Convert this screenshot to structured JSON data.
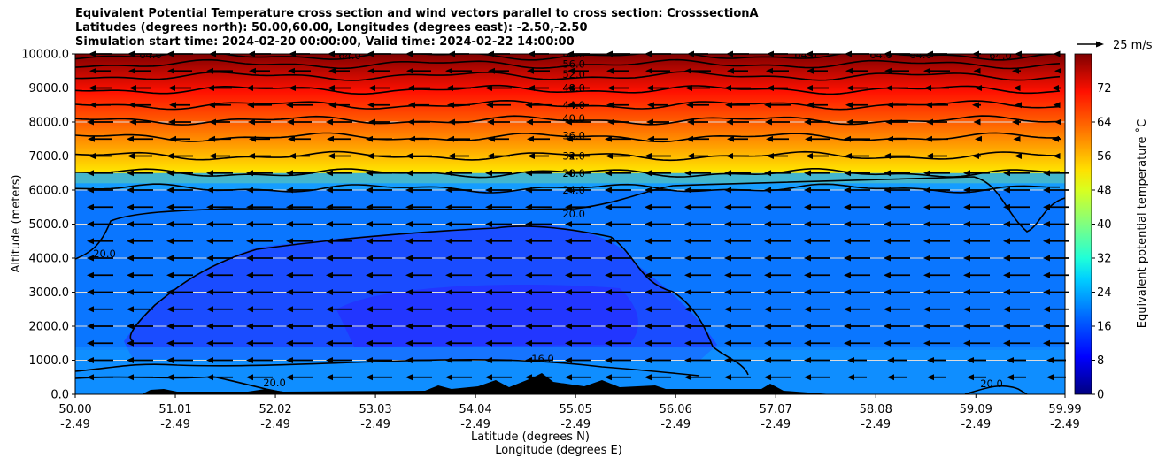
{
  "chart_data": {
    "type": "contourf",
    "title_lines": [
      "Equivalent Potential Temperature cross section and wind vectors parallel to cross section: CrosssectionA",
      "Latitudes (degrees north): 50.00,60.00, Longitudes (degrees east): -2.50,-2.50",
      "Simulation start time: 2024-02-20 00:00:00, Valid time: 2024-02-22 14:00:00"
    ],
    "ylabel": "Altitude (meters)",
    "xlabel_lines": [
      "Latitude (degrees N)",
      "Longitude (degrees E)"
    ],
    "ylim": [
      0,
      10000
    ],
    "yticks": [
      "0.0",
      "1000.0",
      "2000.0",
      "3000.0",
      "4000.0",
      "5000.0",
      "6000.0",
      "7000.0",
      "8000.0",
      "9000.0",
      "10000.0"
    ],
    "xlim": [
      50.0,
      59.99
    ],
    "xticks": [
      {
        "lat": "50.00",
        "lon": "-2.49"
      },
      {
        "lat": "51.01",
        "lon": "-2.49"
      },
      {
        "lat": "52.02",
        "lon": "-2.49"
      },
      {
        "lat": "53.03",
        "lon": "-2.49"
      },
      {
        "lat": "54.04",
        "lon": "-2.49"
      },
      {
        "lat": "55.05",
        "lon": "-2.49"
      },
      {
        "lat": "56.06",
        "lon": "-2.49"
      },
      {
        "lat": "57.07",
        "lon": "-2.49"
      },
      {
        "lat": "58.08",
        "lon": "-2.49"
      },
      {
        "lat": "59.09",
        "lon": "-2.49"
      },
      {
        "lat": "59.99",
        "lon": "-2.49"
      }
    ],
    "colorbar": {
      "label": "Equivalent potential temperature ˚C",
      "range": [
        0,
        80
      ],
      "ticks": [
        "0",
        "8",
        "16",
        "24",
        "32",
        "40",
        "48",
        "56",
        "64",
        "72"
      ],
      "colormap": "jet"
    },
    "quiver_key": {
      "label": "25 m/s",
      "value": 25
    },
    "wind": {
      "direction": "southward (toward lower latitude)",
      "typical_speed_ms": 15
    },
    "grid": "horizontal",
    "contours": [
      {
        "label": "20.0",
        "altitude_at_lat_55": 5300
      },
      {
        "label": "24.0",
        "altitude_at_lat_55": 6000
      },
      {
        "label": "28.0",
        "altitude_at_lat_55": 6500
      },
      {
        "label": "32.0",
        "altitude_at_lat_55": 7000
      },
      {
        "label": "36.0",
        "altitude_at_lat_55": 7600
      },
      {
        "label": "40.0",
        "altitude_at_lat_55": 8100
      },
      {
        "label": "44.0",
        "altitude_at_lat_55": 8500
      },
      {
        "label": "48.0",
        "altitude_at_lat_55": 9000
      },
      {
        "label": "52.0",
        "altitude_at_lat_55": 9400
      },
      {
        "label": "56.0",
        "altitude_at_lat_55": 9700
      },
      {
        "label": "60.0",
        "altitude_at_lat_55": 10000
      },
      {
        "label": "64.0"
      }
    ],
    "inline_labels": [
      "16.0",
      "20.0",
      "20.0",
      "20.0"
    ]
  }
}
